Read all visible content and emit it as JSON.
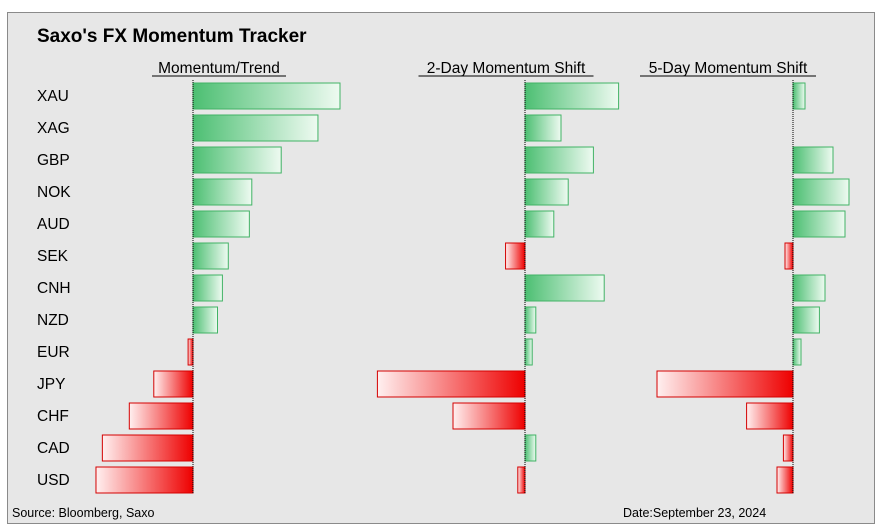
{
  "title": "Saxo's FX Momentum Tracker",
  "source": "Source: Bloomberg, Saxo",
  "date": "Date:September 23, 2024",
  "colors": {
    "positive": "#4cbf72",
    "negative": "#ee0000",
    "background": "#e7e7e7"
  },
  "chart_data": {
    "type": "bar",
    "orientation": "horizontal",
    "categories": [
      "XAU",
      "XAG",
      "GBP",
      "NOK",
      "AUD",
      "SEK",
      "CNH",
      "NZD",
      "EUR",
      "JPY",
      "CHF",
      "CAD",
      "USD"
    ],
    "series": [
      {
        "name": "Momentum/Trend",
        "values": [
          3.0,
          2.55,
          1.8,
          1.2,
          1.15,
          0.72,
          0.6,
          0.5,
          -0.1,
          -0.8,
          -1.3,
          -1.85,
          -1.98
        ]
      },
      {
        "name": "2-Day Momentum Shift",
        "values": [
          1.3,
          0.5,
          0.95,
          0.6,
          0.4,
          -0.27,
          1.1,
          0.15,
          0.1,
          -2.05,
          -1.0,
          0.15,
          -0.1
        ]
      },
      {
        "name": "5-Day Momentum Shift",
        "values": [
          0.15,
          0.0,
          0.5,
          0.7,
          0.65,
          -0.1,
          0.4,
          0.33,
          0.1,
          -1.7,
          -0.58,
          -0.12,
          -0.2
        ]
      }
    ]
  }
}
